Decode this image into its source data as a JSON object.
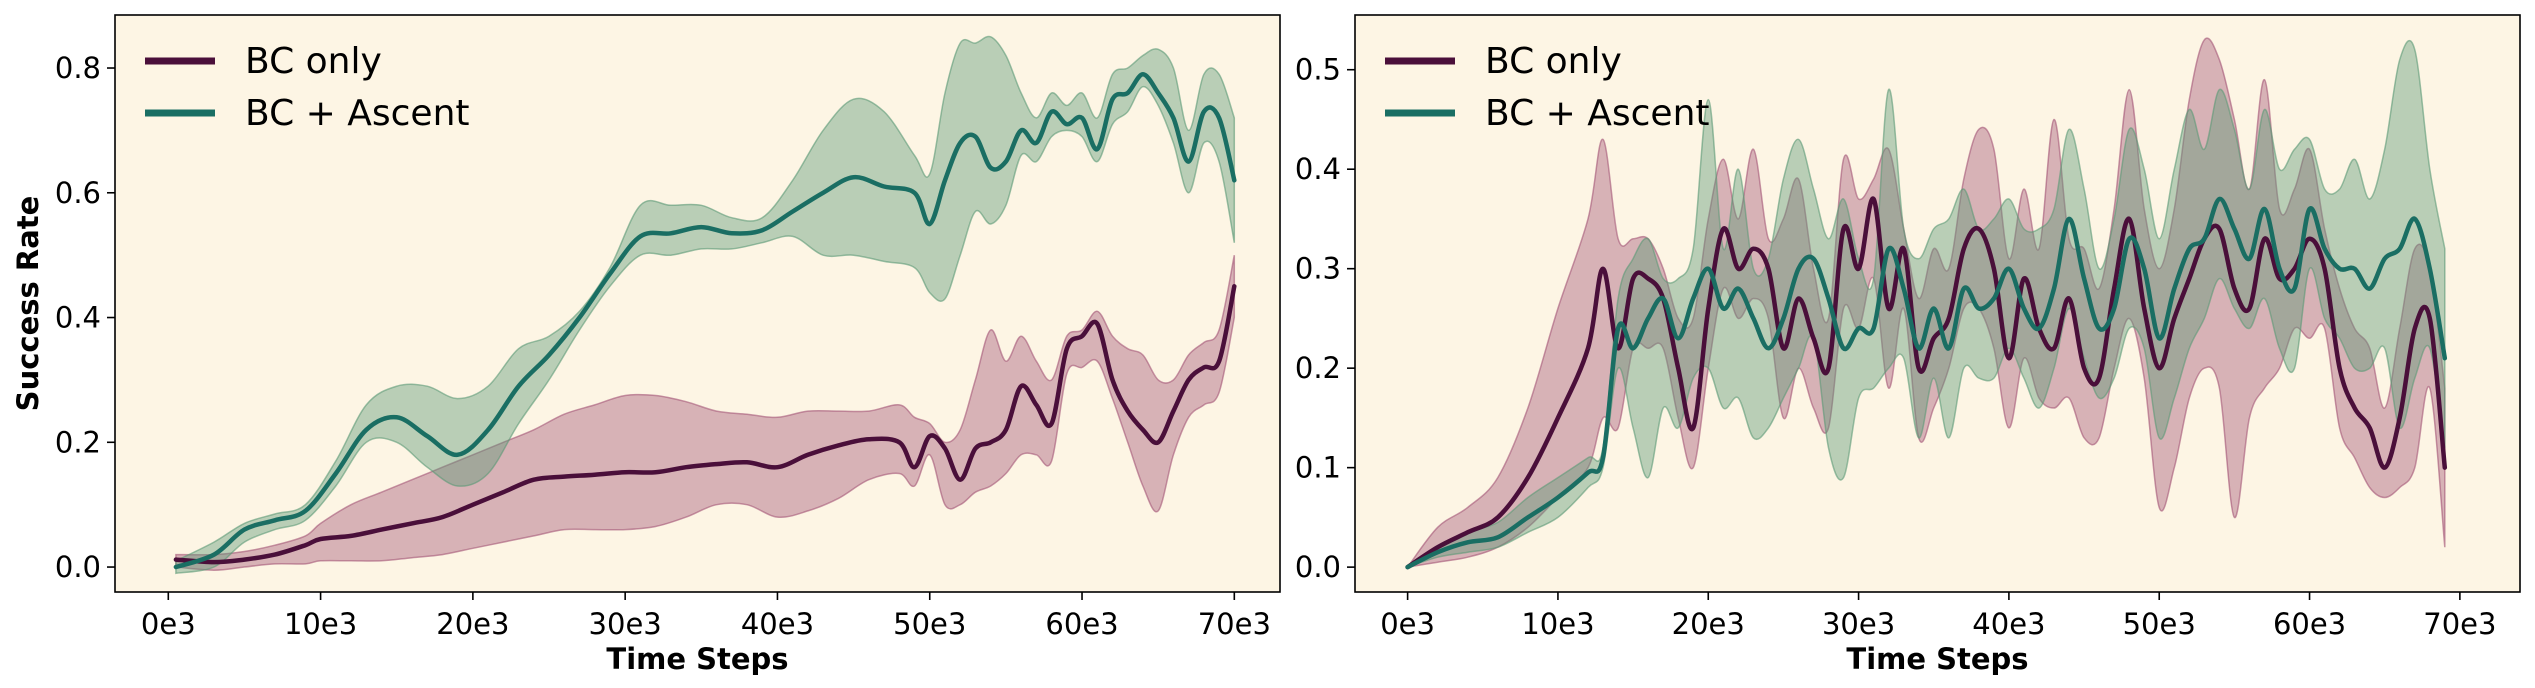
{
  "colors": {
    "background": "#fdf5e4",
    "bc_only": "#4a0f3a",
    "bc_only_band": "#a35577",
    "bc_ascent": "#1a6e63",
    "bc_ascent_band": "#5b9977"
  },
  "chart_data": [
    {
      "type": "line",
      "ylabel": "Success Rate",
      "xlabel": "Time Steps",
      "xlim": [
        -3.5,
        73
      ],
      "ylim": [
        -0.04,
        0.885
      ],
      "xticks": [
        0,
        10,
        20,
        30,
        40,
        50,
        60,
        70
      ],
      "xtick_labels": [
        "0e3",
        "10e3",
        "20e3",
        "30e3",
        "40e3",
        "50e3",
        "60e3",
        "70e3"
      ],
      "yticks": [
        0.0,
        0.2,
        0.4,
        0.6,
        0.8
      ],
      "ytick_labels": [
        "0.0",
        "0.2",
        "0.4",
        "0.6",
        "0.8"
      ],
      "legend": [
        "BC only",
        "BC + Ascent"
      ],
      "legend_position": "top-left",
      "series": [
        {
          "name": "BC only",
          "x": [
            0.5,
            3,
            5,
            7,
            9,
            10,
            12,
            14,
            16,
            18,
            20,
            22,
            24,
            26,
            28,
            30,
            32,
            34,
            36,
            38,
            40,
            42,
            44,
            46,
            48,
            49,
            50,
            51,
            52,
            53,
            54,
            55,
            56,
            57,
            58,
            59,
            60,
            61,
            62,
            63,
            64,
            65,
            66,
            67,
            68,
            69,
            70
          ],
          "y": [
            0.012,
            0.008,
            0.012,
            0.02,
            0.035,
            0.045,
            0.05,
            0.06,
            0.07,
            0.08,
            0.1,
            0.12,
            0.14,
            0.145,
            0.148,
            0.152,
            0.152,
            0.16,
            0.165,
            0.168,
            0.16,
            0.18,
            0.195,
            0.205,
            0.2,
            0.16,
            0.21,
            0.19,
            0.14,
            0.19,
            0.2,
            0.22,
            0.29,
            0.26,
            0.23,
            0.35,
            0.37,
            0.39,
            0.3,
            0.25,
            0.22,
            0.2,
            0.25,
            0.3,
            0.32,
            0.33,
            0.45
          ],
          "upper": [
            0.02,
            0.02,
            0.025,
            0.035,
            0.05,
            0.07,
            0.1,
            0.12,
            0.14,
            0.16,
            0.18,
            0.2,
            0.22,
            0.245,
            0.26,
            0.275,
            0.275,
            0.265,
            0.25,
            0.245,
            0.24,
            0.25,
            0.25,
            0.25,
            0.26,
            0.24,
            0.23,
            0.2,
            0.22,
            0.3,
            0.38,
            0.33,
            0.37,
            0.33,
            0.3,
            0.37,
            0.38,
            0.41,
            0.37,
            0.35,
            0.34,
            0.3,
            0.3,
            0.34,
            0.36,
            0.38,
            0.5
          ],
          "lower": [
            0.0,
            -0.005,
            0.0,
            0.005,
            0.005,
            0.01,
            0.01,
            0.01,
            0.015,
            0.02,
            0.03,
            0.04,
            0.05,
            0.06,
            0.06,
            0.06,
            0.065,
            0.08,
            0.1,
            0.1,
            0.08,
            0.09,
            0.11,
            0.14,
            0.15,
            0.13,
            0.18,
            0.1,
            0.1,
            0.12,
            0.13,
            0.15,
            0.18,
            0.18,
            0.17,
            0.31,
            0.32,
            0.33,
            0.27,
            0.2,
            0.13,
            0.09,
            0.18,
            0.24,
            0.26,
            0.28,
            0.4
          ]
        },
        {
          "name": "BC + Ascent",
          "x": [
            0.5,
            3,
            5,
            7,
            9,
            11,
            13,
            15,
            17,
            19,
            21,
            23,
            25,
            27,
            29,
            31,
            33,
            35,
            37,
            39,
            41,
            43,
            45,
            47,
            49,
            50,
            51,
            52,
            53,
            54,
            55,
            56,
            57,
            58,
            59,
            60,
            61,
            62,
            63,
            64,
            65,
            66,
            67,
            68,
            69,
            70
          ],
          "y": [
            0.0,
            0.02,
            0.06,
            0.075,
            0.09,
            0.15,
            0.22,
            0.24,
            0.21,
            0.18,
            0.22,
            0.29,
            0.34,
            0.4,
            0.47,
            0.53,
            0.535,
            0.545,
            0.535,
            0.54,
            0.57,
            0.6,
            0.625,
            0.61,
            0.6,
            0.55,
            0.62,
            0.68,
            0.69,
            0.64,
            0.65,
            0.7,
            0.68,
            0.73,
            0.71,
            0.72,
            0.67,
            0.75,
            0.76,
            0.79,
            0.76,
            0.72,
            0.65,
            0.73,
            0.72,
            0.62
          ],
          "upper": [
            0.01,
            0.04,
            0.07,
            0.085,
            0.1,
            0.17,
            0.26,
            0.29,
            0.29,
            0.27,
            0.29,
            0.35,
            0.37,
            0.41,
            0.48,
            0.58,
            0.58,
            0.58,
            0.56,
            0.56,
            0.62,
            0.7,
            0.75,
            0.73,
            0.66,
            0.63,
            0.76,
            0.84,
            0.84,
            0.85,
            0.82,
            0.76,
            0.72,
            0.76,
            0.74,
            0.76,
            0.72,
            0.79,
            0.8,
            0.82,
            0.83,
            0.8,
            0.7,
            0.79,
            0.79,
            0.72
          ],
          "lower": [
            -0.01,
            0.0,
            0.04,
            0.06,
            0.075,
            0.13,
            0.2,
            0.2,
            0.16,
            0.13,
            0.15,
            0.23,
            0.3,
            0.38,
            0.45,
            0.5,
            0.5,
            0.51,
            0.51,
            0.52,
            0.53,
            0.5,
            0.5,
            0.49,
            0.48,
            0.44,
            0.43,
            0.5,
            0.57,
            0.55,
            0.58,
            0.66,
            0.65,
            0.69,
            0.7,
            0.69,
            0.65,
            0.71,
            0.73,
            0.77,
            0.74,
            0.68,
            0.6,
            0.68,
            0.65,
            0.52
          ]
        }
      ]
    },
    {
      "type": "line",
      "ylabel": "",
      "xlabel": "Time Steps",
      "xlim": [
        -3.5,
        74
      ],
      "ylim": [
        -0.025,
        0.555
      ],
      "xticks": [
        0,
        10,
        20,
        30,
        40,
        50,
        60,
        70
      ],
      "xtick_labels": [
        "0e3",
        "10e3",
        "20e3",
        "30e3",
        "40e3",
        "50e3",
        "60e3",
        "70e3"
      ],
      "yticks": [
        0.0,
        0.1,
        0.2,
        0.3,
        0.4,
        0.5
      ],
      "ytick_labels": [
        "0.0",
        "0.1",
        "0.2",
        "0.3",
        "0.4",
        "0.5"
      ],
      "legend": [
        "BC only",
        "BC + Ascent"
      ],
      "legend_position": "top-left",
      "series": [
        {
          "name": "BC only",
          "x": [
            0,
            2,
            4,
            6,
            8,
            10,
            12,
            13,
            14,
            15,
            16,
            17,
            18,
            19,
            20,
            21,
            22,
            23,
            24,
            25,
            26,
            27,
            28,
            29,
            30,
            31,
            32,
            33,
            34,
            35,
            36,
            37,
            38,
            39,
            40,
            41,
            42,
            43,
            44,
            45,
            46,
            47,
            48,
            49,
            50,
            51,
            52,
            53,
            54,
            55,
            56,
            57,
            58,
            59,
            60,
            61,
            62,
            63,
            64,
            65,
            66,
            67,
            68,
            69
          ],
          "y": [
            0.0,
            0.02,
            0.035,
            0.05,
            0.09,
            0.15,
            0.22,
            0.3,
            0.22,
            0.29,
            0.29,
            0.27,
            0.2,
            0.14,
            0.26,
            0.34,
            0.3,
            0.32,
            0.3,
            0.22,
            0.27,
            0.23,
            0.2,
            0.34,
            0.3,
            0.37,
            0.26,
            0.32,
            0.2,
            0.23,
            0.25,
            0.32,
            0.34,
            0.3,
            0.21,
            0.29,
            0.24,
            0.22,
            0.27,
            0.2,
            0.19,
            0.28,
            0.35,
            0.26,
            0.2,
            0.25,
            0.29,
            0.33,
            0.34,
            0.28,
            0.26,
            0.33,
            0.29,
            0.3,
            0.33,
            0.3,
            0.2,
            0.16,
            0.14,
            0.1,
            0.15,
            0.24,
            0.25,
            0.1
          ],
          "upper": [
            0.0,
            0.04,
            0.06,
            0.09,
            0.16,
            0.26,
            0.35,
            0.43,
            0.33,
            0.33,
            0.33,
            0.3,
            0.25,
            0.25,
            0.35,
            0.41,
            0.35,
            0.42,
            0.33,
            0.35,
            0.39,
            0.3,
            0.25,
            0.41,
            0.37,
            0.39,
            0.42,
            0.34,
            0.27,
            0.32,
            0.3,
            0.39,
            0.44,
            0.42,
            0.31,
            0.38,
            0.32,
            0.45,
            0.33,
            0.32,
            0.28,
            0.36,
            0.48,
            0.36,
            0.3,
            0.36,
            0.47,
            0.53,
            0.51,
            0.45,
            0.38,
            0.49,
            0.36,
            0.38,
            0.42,
            0.34,
            0.28,
            0.24,
            0.22,
            0.16,
            0.24,
            0.32,
            0.3,
            0.18
          ],
          "lower": [
            0.0,
            0.005,
            0.01,
            0.02,
            0.04,
            0.07,
            0.1,
            0.15,
            0.14,
            0.22,
            0.22,
            0.22,
            0.15,
            0.1,
            0.2,
            0.28,
            0.25,
            0.27,
            0.25,
            0.15,
            0.2,
            0.16,
            0.14,
            0.26,
            0.24,
            0.29,
            0.18,
            0.26,
            0.13,
            0.16,
            0.2,
            0.26,
            0.26,
            0.22,
            0.14,
            0.21,
            0.17,
            0.16,
            0.17,
            0.13,
            0.13,
            0.2,
            0.25,
            0.19,
            0.06,
            0.1,
            0.17,
            0.2,
            0.18,
            0.05,
            0.15,
            0.18,
            0.2,
            0.24,
            0.23,
            0.24,
            0.14,
            0.11,
            0.08,
            0.07,
            0.08,
            0.1,
            0.18,
            0.02
          ]
        },
        {
          "name": "BC + Ascent",
          "x": [
            0,
            2,
            4,
            6,
            8,
            10,
            12,
            13,
            14,
            15,
            16,
            17,
            18,
            19,
            20,
            21,
            22,
            23,
            24,
            25,
            26,
            27,
            28,
            29,
            30,
            31,
            32,
            33,
            34,
            35,
            36,
            37,
            38,
            39,
            40,
            41,
            42,
            43,
            44,
            45,
            46,
            47,
            48,
            49,
            50,
            51,
            52,
            53,
            54,
            55,
            56,
            57,
            58,
            59,
            60,
            61,
            62,
            63,
            64,
            65,
            66,
            67,
            68,
            69
          ],
          "y": [
            0.0,
            0.015,
            0.025,
            0.03,
            0.05,
            0.07,
            0.095,
            0.11,
            0.24,
            0.22,
            0.25,
            0.27,
            0.23,
            0.27,
            0.3,
            0.26,
            0.28,
            0.25,
            0.22,
            0.25,
            0.3,
            0.31,
            0.27,
            0.22,
            0.24,
            0.24,
            0.32,
            0.28,
            0.22,
            0.26,
            0.22,
            0.28,
            0.26,
            0.27,
            0.3,
            0.26,
            0.24,
            0.28,
            0.35,
            0.29,
            0.24,
            0.26,
            0.33,
            0.3,
            0.23,
            0.28,
            0.32,
            0.33,
            0.37,
            0.34,
            0.31,
            0.36,
            0.3,
            0.28,
            0.36,
            0.32,
            0.3,
            0.3,
            0.28,
            0.31,
            0.32,
            0.35,
            0.3,
            0.21
          ],
          "upper": [
            0.0,
            0.02,
            0.035,
            0.045,
            0.07,
            0.09,
            0.11,
            0.12,
            0.27,
            0.31,
            0.33,
            0.29,
            0.29,
            0.32,
            0.47,
            0.32,
            0.4,
            0.3,
            0.31,
            0.39,
            0.43,
            0.38,
            0.33,
            0.37,
            0.31,
            0.29,
            0.48,
            0.34,
            0.31,
            0.34,
            0.35,
            0.38,
            0.34,
            0.35,
            0.37,
            0.34,
            0.34,
            0.36,
            0.44,
            0.38,
            0.3,
            0.35,
            0.44,
            0.4,
            0.33,
            0.4,
            0.46,
            0.42,
            0.48,
            0.44,
            0.38,
            0.46,
            0.4,
            0.42,
            0.43,
            0.38,
            0.38,
            0.41,
            0.37,
            0.42,
            0.51,
            0.52,
            0.4,
            0.32
          ],
          "lower": [
            0.0,
            0.01,
            0.015,
            0.02,
            0.035,
            0.05,
            0.08,
            0.1,
            0.2,
            0.14,
            0.09,
            0.16,
            0.14,
            0.19,
            0.2,
            0.16,
            0.17,
            0.13,
            0.14,
            0.17,
            0.2,
            0.23,
            0.12,
            0.09,
            0.17,
            0.18,
            0.2,
            0.21,
            0.13,
            0.19,
            0.13,
            0.2,
            0.19,
            0.19,
            0.22,
            0.19,
            0.16,
            0.2,
            0.26,
            0.21,
            0.17,
            0.19,
            0.24,
            0.22,
            0.13,
            0.17,
            0.22,
            0.25,
            0.29,
            0.26,
            0.24,
            0.27,
            0.22,
            0.2,
            0.3,
            0.25,
            0.23,
            0.2,
            0.2,
            0.22,
            0.14,
            0.19,
            0.22,
            0.12
          ]
        }
      ]
    }
  ]
}
